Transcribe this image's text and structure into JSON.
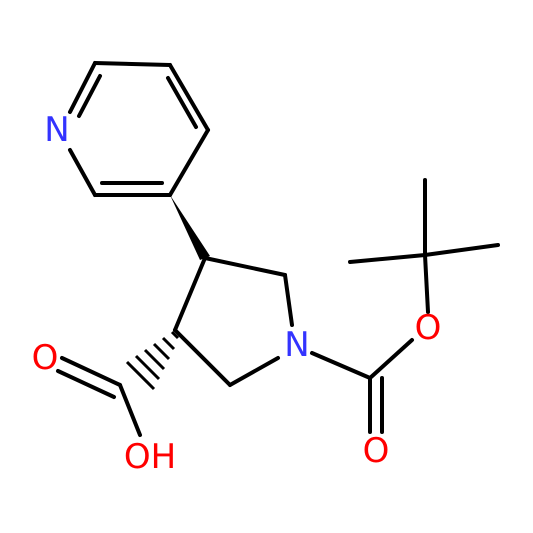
{
  "atoms": {
    "pyridine_n": "N",
    "ring_n": "N",
    "ester_o": "O",
    "carbonyl_o": "O",
    "acid_o": "O",
    "acid_oh": "OH"
  }
}
